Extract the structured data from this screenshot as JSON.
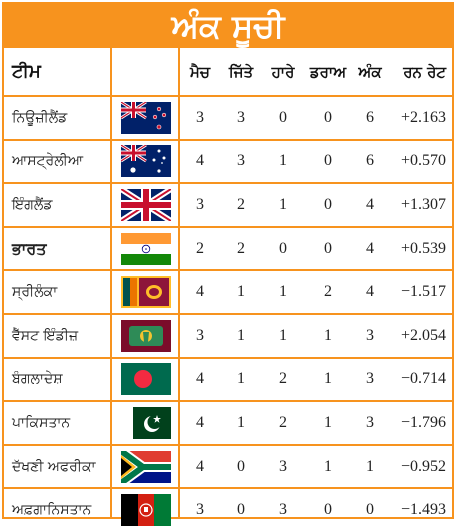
{
  "title": "ਅੰਕ ਸੂਚੀ",
  "headers": {
    "team": "ਟੀਮ",
    "matches": "ਮੈਚ",
    "won": "ਜਿੱਤੇ",
    "lost": "ਹਾਰੇ",
    "draw": "ਡਰਾਅ",
    "points": "ਅੰਕ",
    "run_rate": "ਰਨ ਰੇਟ"
  },
  "rows": [
    {
      "team": "ਨਿਊਜ਼ੀਲੈਂਡ",
      "flag": "new-zealand-flag",
      "matches": "3",
      "won": "3",
      "lost": "0",
      "draw": "0",
      "points": "6",
      "run_rate": "+2.163"
    },
    {
      "team": "ਆਸਟ੍ਰੇਲੀਆ",
      "flag": "australia-flag",
      "matches": "4",
      "won": "3",
      "lost": "1",
      "draw": "0",
      "points": "6",
      "run_rate": "+0.570"
    },
    {
      "team": "ਇੰਗਲੈਂਡ",
      "flag": "england-flag",
      "matches": "3",
      "won": "2",
      "lost": "1",
      "draw": "0",
      "points": "4",
      "run_rate": "+1.307"
    },
    {
      "team": "ਭਾਰਤ",
      "flag": "india-flag",
      "matches": "2",
      "won": "2",
      "lost": "0",
      "draw": "0",
      "points": "4",
      "run_rate": "+0.539"
    },
    {
      "team": "ਸ੍ਰੀਲੰਕਾ",
      "flag": "sri-lanka-flag",
      "matches": "4",
      "won": "1",
      "lost": "1",
      "draw": "2",
      "points": "4",
      "run_rate": "−1.517"
    },
    {
      "team": "ਵੈੱਸਟ ਇੰਡੀਜ਼",
      "flag": "west-indies-flag",
      "matches": "3",
      "won": "1",
      "lost": "1",
      "draw": "1",
      "points": "3",
      "run_rate": "+2.054"
    },
    {
      "team": "ਬੰਗਲਾਦੇਸ਼",
      "flag": "bangladesh-flag",
      "matches": "4",
      "won": "1",
      "lost": "2",
      "draw": "1",
      "points": "3",
      "run_rate": "−0.714"
    },
    {
      "team": "ਪਾਕਿਸਤਾਨ",
      "flag": "pakistan-flag",
      "matches": "4",
      "won": "1",
      "lost": "2",
      "draw": "1",
      "points": "3",
      "run_rate": "−1.796"
    },
    {
      "team": "ਦੱਖਣੀ ਅਫਰੀਕਾ",
      "flag": "south-africa-flag",
      "matches": "4",
      "won": "0",
      "lost": "3",
      "draw": "1",
      "points": "1",
      "run_rate": "−0.952"
    },
    {
      "team": "ਅਫ਼ਗਾਨਿਸਤਾਨ",
      "flag": "afghanistan-flag",
      "matches": "3",
      "won": "0",
      "lost": "3",
      "draw": "0",
      "points": "0",
      "run_rate": "−1.493"
    }
  ],
  "colors": {
    "accent": "#f7931e"
  }
}
